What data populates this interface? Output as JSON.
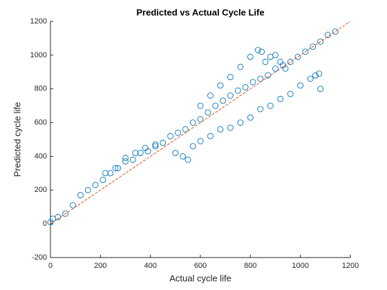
{
  "chart_data": {
    "type": "scatter",
    "title": "Predicted vs Actual Cycle Life",
    "xlabel": "Actual cycle life",
    "ylabel": "Predicted cycle life",
    "xlim": [
      0,
      1200
    ],
    "ylim": [
      -200,
      1200
    ],
    "xticks": [
      0,
      200,
      400,
      600,
      800,
      1000,
      1200
    ],
    "yticks": [
      -200,
      0,
      200,
      400,
      600,
      800,
      1000,
      1200
    ],
    "grid": false,
    "series": [
      {
        "color": "#0072bd",
        "x": [
          0,
          10,
          30,
          60,
          90,
          120,
          150,
          180,
          210,
          240,
          270,
          300,
          330,
          360,
          390,
          420,
          450,
          480,
          510,
          540,
          570,
          600,
          630,
          660,
          690,
          720,
          750,
          780,
          810,
          840,
          870,
          900,
          930,
          960,
          990,
          1020,
          1050,
          1080,
          1110,
          1140,
          600,
          640,
          680,
          720,
          760,
          800,
          830,
          845,
          860,
          880,
          900,
          920,
          940,
          500,
          530,
          550,
          570,
          600,
          640,
          680,
          720,
          760,
          800,
          840,
          880,
          920,
          960,
          1000,
          1040,
          1060,
          1075,
          1080,
          220,
          260,
          300,
          340,
          380,
          420
        ],
        "values": [
          10,
          30,
          40,
          60,
          110,
          170,
          200,
          230,
          260,
          300,
          330,
          370,
          380,
          420,
          430,
          460,
          480,
          520,
          540,
          560,
          600,
          620,
          660,
          700,
          730,
          760,
          790,
          810,
          840,
          860,
          880,
          920,
          940,
          960,
          990,
          1020,
          1050,
          1080,
          1120,
          1140,
          700,
          760,
          820,
          870,
          930,
          990,
          1030,
          1020,
          960,
          990,
          1000,
          960,
          920,
          420,
          400,
          380,
          460,
          490,
          520,
          560,
          570,
          600,
          630,
          680,
          700,
          740,
          770,
          820,
          860,
          880,
          890,
          800,
          300,
          330,
          390,
          420,
          450,
          470
        ]
      },
      {
        "type": "line",
        "color": "#d95319",
        "x": [
          0,
          1200
        ],
        "values": [
          0,
          1200
        ]
      }
    ]
  }
}
